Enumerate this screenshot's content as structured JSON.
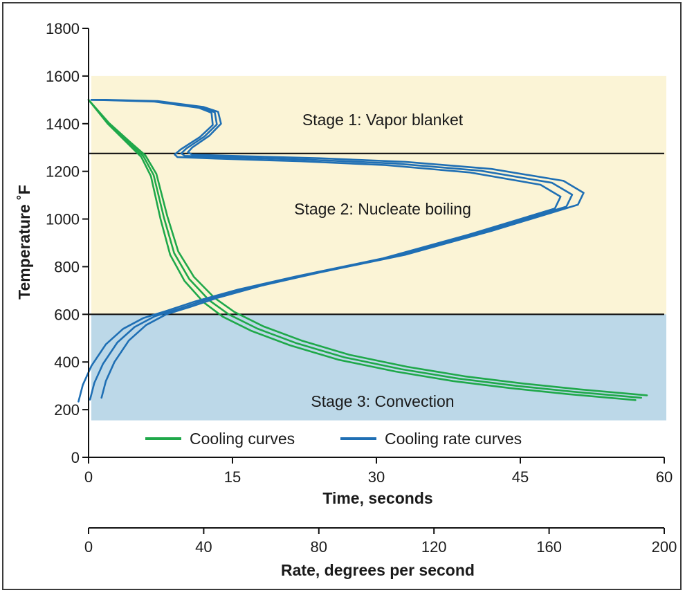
{
  "chart_data": {
    "type": "line",
    "title": "",
    "ylabel": "Temperature ˚F",
    "xlabel": "Time, seconds",
    "x2label": "Rate, degrees per second",
    "ylim": [
      0,
      1800
    ],
    "xlim": [
      0,
      60
    ],
    "x2lim": [
      0,
      200
    ],
    "y_ticks": [
      "0",
      "200",
      "400",
      "600",
      "800",
      "1000",
      "1200",
      "1400",
      "1600",
      "1800"
    ],
    "x_ticks": [
      "0",
      "15",
      "30",
      "45",
      "60"
    ],
    "x2_ticks": [
      "0",
      "40",
      "80",
      "120",
      "160",
      "200"
    ],
    "grid": false,
    "legend_position": "bottom",
    "stages": [
      {
        "label": "Stage 1: Vapor blanket",
        "y_range": [
          1275,
          1600
        ],
        "color": "#fbf4d6"
      },
      {
        "label": "Stage 2: Nucleate boiling",
        "y_range": [
          600,
          1275
        ],
        "color": "#fbf4d6"
      },
      {
        "label": "Stage 3: Convection",
        "y_range": [
          155,
          600
        ],
        "color": "#bcd8e8"
      }
    ],
    "series": [
      {
        "name": "Cooling curves",
        "axis": "time",
        "color": "#1fa84a",
        "x": [
          0,
          2,
          4,
          5.5,
          6.5,
          7.5,
          8.5,
          10,
          12,
          14,
          17,
          21,
          26,
          32,
          38,
          44,
          50,
          57
        ],
        "y": [
          1500,
          1400,
          1320,
          1260,
          1180,
          1000,
          850,
          740,
          650,
          590,
          530,
          470,
          410,
          360,
          320,
          290,
          265,
          240
        ],
        "replicate_offsets": [
          [
            0,
            0
          ],
          [
            0.6,
            10
          ],
          [
            1.2,
            20
          ]
        ]
      },
      {
        "name": "Cooling rate curves",
        "axis": "rate",
        "color": "#1f6fb4",
        "x": [
          1,
          6,
          24,
          40,
          45,
          46,
          42,
          36,
          34.5,
          36,
          50,
          80,
          110,
          140,
          165,
          172,
          170,
          140,
          110,
          80,
          60,
          45,
          35,
          27,
          20,
          14,
          9,
          6,
          4.5
        ],
        "y": [
          1500,
          1500,
          1495,
          1470,
          1450,
          1400,
          1350,
          1300,
          1280,
          1270,
          1265,
          1255,
          1240,
          1210,
          1160,
          1110,
          1060,
          950,
          850,
          775,
          720,
          670,
          630,
          600,
          555,
          490,
          400,
          320,
          250
        ],
        "replicate_offsets": [
          [
            0,
            0
          ],
          [
            -4,
            -8
          ],
          [
            -8,
            -16
          ]
        ]
      }
    ]
  }
}
